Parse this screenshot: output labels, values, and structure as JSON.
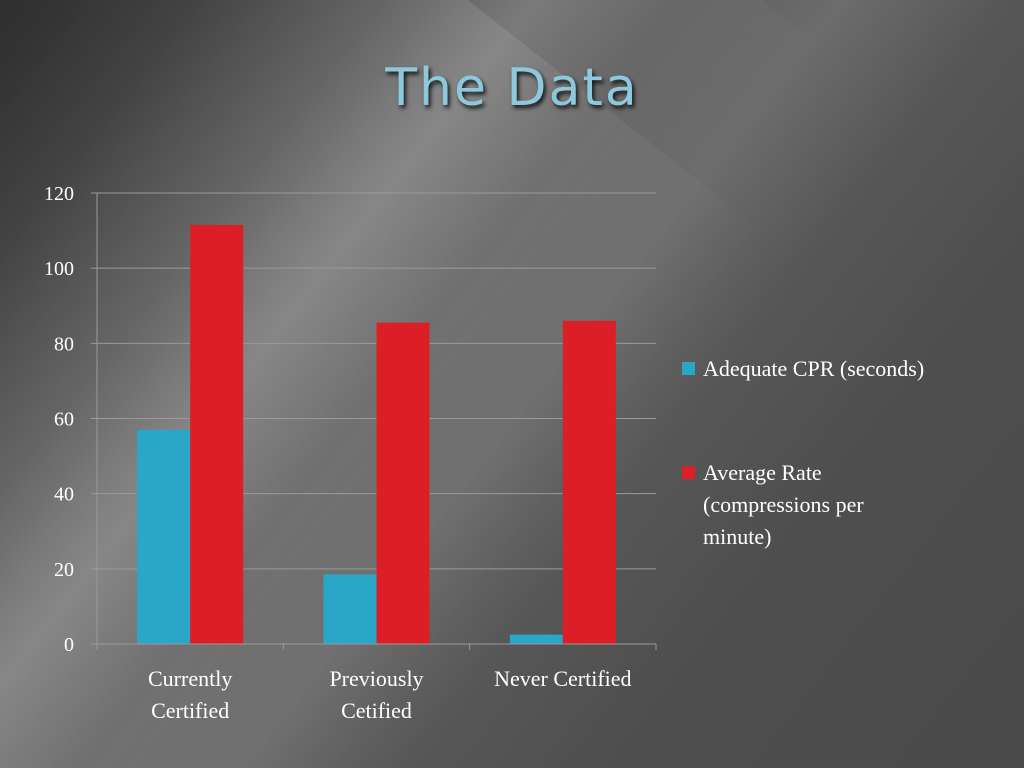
{
  "slide": {
    "title": "The Data"
  },
  "colors": {
    "series_1": "#2aa6c6",
    "series_2": "#dc1f27",
    "gridline": "#9a9a9a",
    "text": "#ffffff",
    "title": "#8ec8dc"
  },
  "chart_data": {
    "type": "bar",
    "title": "",
    "xlabel": "",
    "ylabel": "",
    "categories": [
      [
        "Currently",
        "Certified"
      ],
      [
        "Previously",
        "Cetified"
      ],
      [
        "Never Certified"
      ]
    ],
    "series": [
      {
        "name": "Adequate CPR (seconds)",
        "legend_lines": [
          "Adequate CPR (seconds)"
        ],
        "values": [
          57,
          18.5,
          2.5
        ]
      },
      {
        "name": "Average Rate (compressions per minute)",
        "legend_lines": [
          "Average Rate",
          "(compressions per",
          "minute)"
        ],
        "values": [
          111.5,
          85.5,
          86
        ]
      }
    ],
    "ylim": [
      0,
      120
    ],
    "yticks": [
      0,
      20,
      40,
      60,
      80,
      100,
      120
    ],
    "grid": true,
    "legend_position": "right"
  }
}
